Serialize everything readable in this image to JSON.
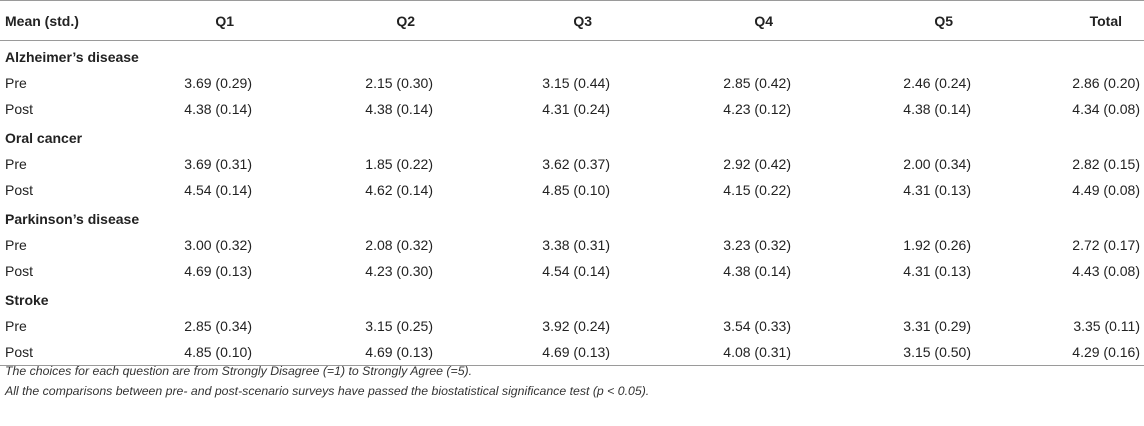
{
  "table": {
    "columns": [
      "Mean (std.)",
      "Q1",
      "Q2",
      "Q3",
      "Q4",
      "Q5",
      "Total"
    ],
    "groups": [
      {
        "name": "Alzheimer’s disease",
        "rows": [
          {
            "label": "Pre",
            "values": [
              "3.69 (0.29)",
              "2.15 (0.30)",
              "3.15 (0.44)",
              "2.85 (0.42)",
              "2.46 (0.24)",
              "2.86 (0.20)"
            ]
          },
          {
            "label": "Post",
            "values": [
              "4.38 (0.14)",
              "4.38 (0.14)",
              "4.31 (0.24)",
              "4.23 (0.12)",
              "4.38 (0.14)",
              "4.34 (0.08)"
            ]
          }
        ]
      },
      {
        "name": "Oral cancer",
        "rows": [
          {
            "label": "Pre",
            "values": [
              "3.69 (0.31)",
              "1.85 (0.22)",
              "3.62 (0.37)",
              "2.92 (0.42)",
              "2.00 (0.34)",
              "2.82 (0.15)"
            ]
          },
          {
            "label": "Post",
            "values": [
              "4.54 (0.14)",
              "4.62 (0.14)",
              "4.85 (0.10)",
              "4.15 (0.22)",
              "4.31 (0.13)",
              "4.49 (0.08)"
            ]
          }
        ]
      },
      {
        "name": "Parkinson’s disease",
        "rows": [
          {
            "label": "Pre",
            "values": [
              "3.00 (0.32)",
              "2.08 (0.32)",
              "3.38 (0.31)",
              "3.23 (0.32)",
              "1.92 (0.26)",
              "2.72 (0.17)"
            ]
          },
          {
            "label": "Post",
            "values": [
              "4.69 (0.13)",
              "4.23 (0.30)",
              "4.54 (0.14)",
              "4.38 (0.14)",
              "4.31 (0.13)",
              "4.43 (0.08)"
            ]
          }
        ]
      },
      {
        "name": "Stroke",
        "rows": [
          {
            "label": "Pre",
            "values": [
              "2.85 (0.34)",
              "3.15 (0.25)",
              "3.92 (0.24)",
              "3.54 (0.33)",
              "3.31 (0.29)",
              "3.35 (0.11)"
            ]
          },
          {
            "label": "Post",
            "values": [
              "4.85 (0.10)",
              "4.69 (0.13)",
              "4.69 (0.13)",
              "4.08 (0.31)",
              "3.15 (0.50)",
              "4.29 (0.16)"
            ]
          }
        ]
      }
    ]
  },
  "notes": [
    "The choices for each question are from Strongly Disagree (=1) to Strongly Agree (=5).",
    "All the comparisons between pre- and post-scenario surveys have passed the biostatistical significance test (p < 0.05)."
  ]
}
